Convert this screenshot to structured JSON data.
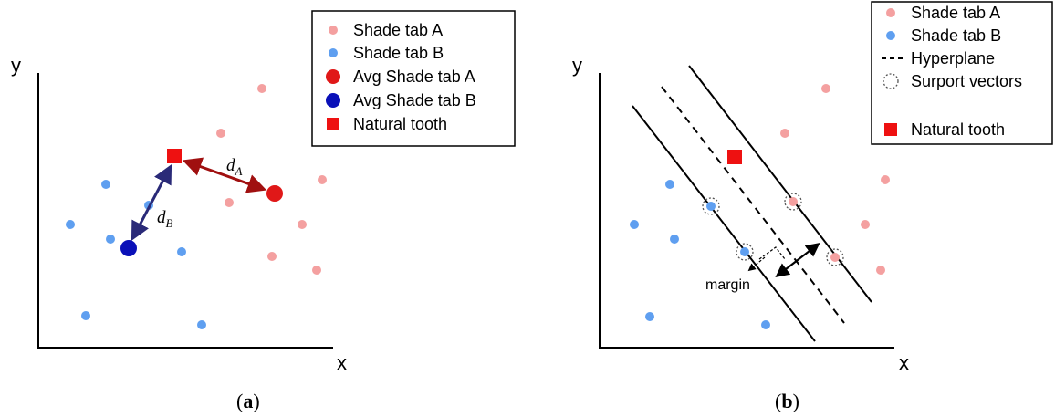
{
  "colors": {
    "shade_a": "#f4a0a0",
    "shade_b": "#5f9ff0",
    "avg_a": "#e01818",
    "avg_b": "#0a10b8",
    "natural": "#ee1111",
    "arrow_a": "#a01010",
    "arrow_b": "#2a2a78"
  },
  "panel_a": {
    "caption_open": "(",
    "caption_letter": "a",
    "caption_close": ")",
    "x_label": "x",
    "y_label": "y",
    "legend": [
      "Shade tab A",
      "Shade tab B",
      "Avg Shade tab A",
      "Avg Shade tab B",
      "Natural tooth"
    ],
    "distance_a": {
      "base": "d",
      "sub": "A"
    },
    "distance_b": {
      "base": "d",
      "sub": "B"
    }
  },
  "panel_b": {
    "caption_open": "(",
    "caption_letter": "b",
    "caption_close": ")",
    "x_label": "x",
    "y_label": "y",
    "legend": [
      "Shade tab A",
      "Shade tab B",
      "Hyperplane",
      "Surport vectors",
      "Natural tooth"
    ],
    "margin_label": "margin"
  }
}
